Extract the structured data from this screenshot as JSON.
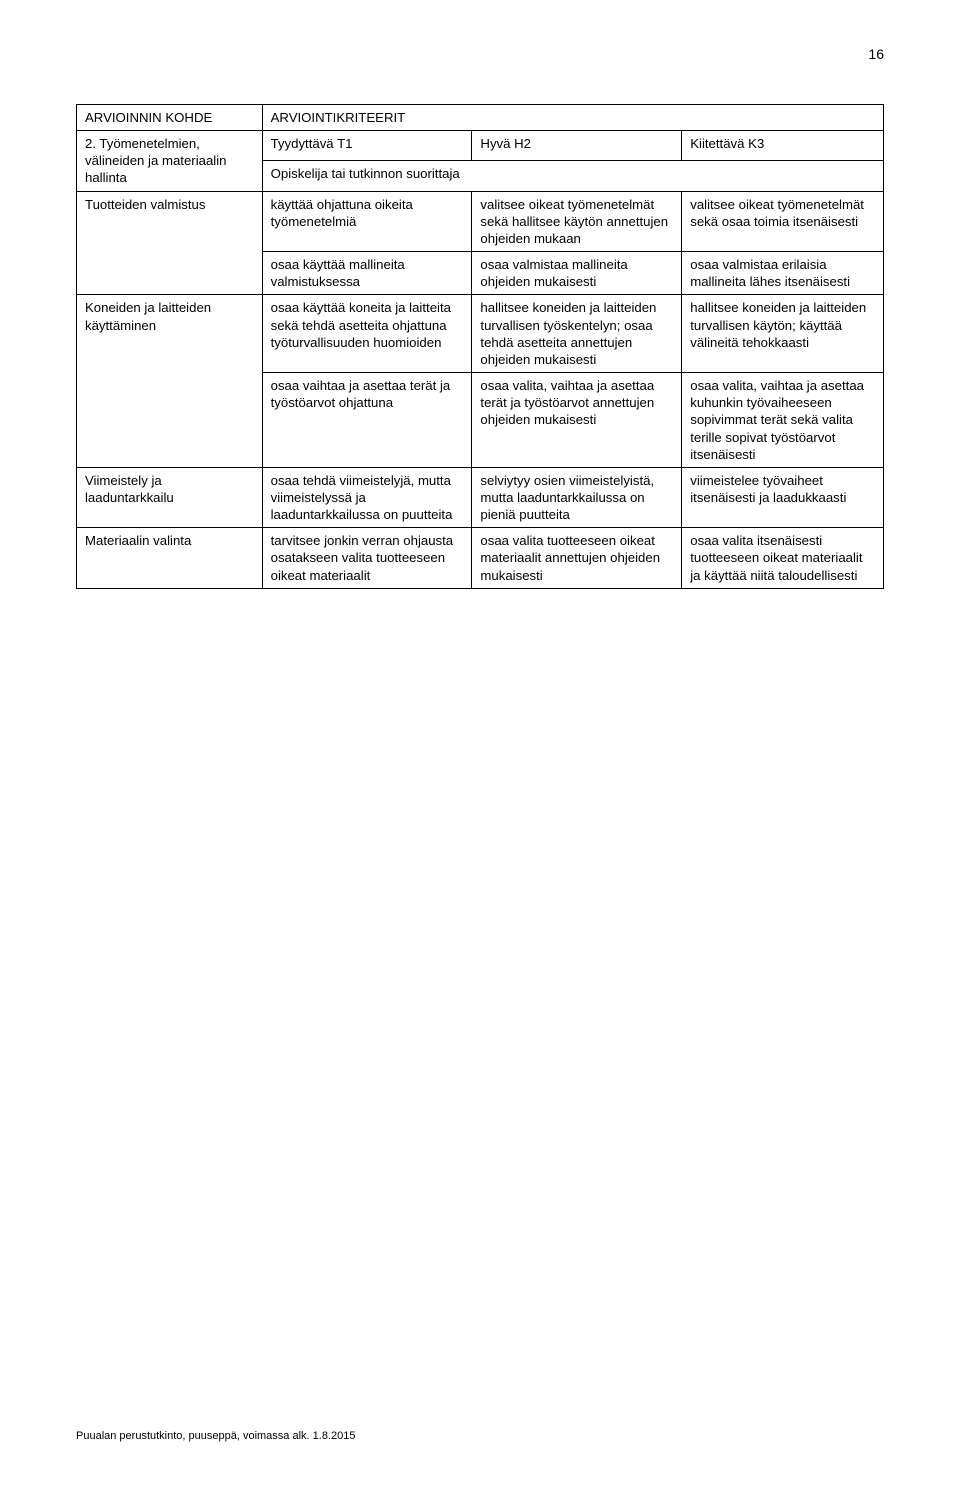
{
  "page_number": "16",
  "footer": "Puualan perustutkinto, puuseppä, voimassa alk. 1.8.2015",
  "table": {
    "header1": {
      "c1": "ARVIOINNIN KOHDE",
      "c2": "ARVIOINTIKRITEERIT"
    },
    "header2": {
      "c1": "2. Työmenetelmien, välineiden ja materiaalin hallinta",
      "c2": "Tyydyttävä T1",
      "c3": "Hyvä H2",
      "c4": "Kiitettävä K3"
    },
    "header3": {
      "c2": "Opiskelija tai tutkinnon suorittaja"
    },
    "r1": {
      "label": "Tuotteiden valmistus",
      "c2": "käyttää ohjattuna oikeita työmenetelmiä",
      "c3": "valitsee oikeat työmenetelmät sekä hallitsee käytön annettujen ohjeiden mukaan",
      "c4": "valitsee oikeat työmenetelmät sekä osaa toimia itsenäisesti"
    },
    "r2": {
      "c2": "osaa käyttää mallineita valmistuksessa",
      "c3": "osaa valmistaa mallineita ohjeiden mukaisesti",
      "c4": "osaa valmistaa erilaisia mallineita lähes itsenäisesti"
    },
    "r3": {
      "label": "Koneiden ja laitteiden käyttäminen",
      "c2": "osaa käyttää koneita ja laitteita sekä tehdä asetteita ohjattuna työturvallisuuden huomioiden",
      "c3": "hallitsee koneiden ja laitteiden turvallisen työskentelyn; osaa tehdä asetteita annettujen ohjeiden mukaisesti",
      "c4": "hallitsee koneiden ja laitteiden turvallisen käytön; käyttää välineitä tehokkaasti"
    },
    "r4": {
      "c2": "osaa vaihtaa ja asettaa terät ja työstöarvot ohjattuna",
      "c3": "osaa valita, vaihtaa ja asettaa terät ja työstöarvot annettujen ohjeiden mukaisesti",
      "c4": "osaa valita, vaihtaa ja asettaa kuhunkin työvaiheeseen sopivimmat terät sekä valita terille sopivat työstöarvot itsenäisesti"
    },
    "r5": {
      "label": "Viimeistely ja laaduntarkkailu",
      "c2": "osaa tehdä viimeistelyjä, mutta viimeistelyssä ja laaduntarkkailussa on puutteita",
      "c3": "selviytyy osien viimeistelyistä, mutta laaduntarkkailussa on pieniä puutteita",
      "c4": "viimeistelee työvaiheet itsenäisesti ja laadukkaasti"
    },
    "r6": {
      "label": "Materiaalin valinta",
      "c2": "tarvitsee jonkin verran ohjausta osatakseen valita tuotteeseen oikeat materiaalit",
      "c3": "osaa valita tuotteeseen oikeat materiaalit annettujen ohjeiden mukaisesti",
      "c4": "osaa valita itsenäisesti tuotteeseen oikeat materiaalit ja käyttää niitä taloudellisesti"
    }
  }
}
